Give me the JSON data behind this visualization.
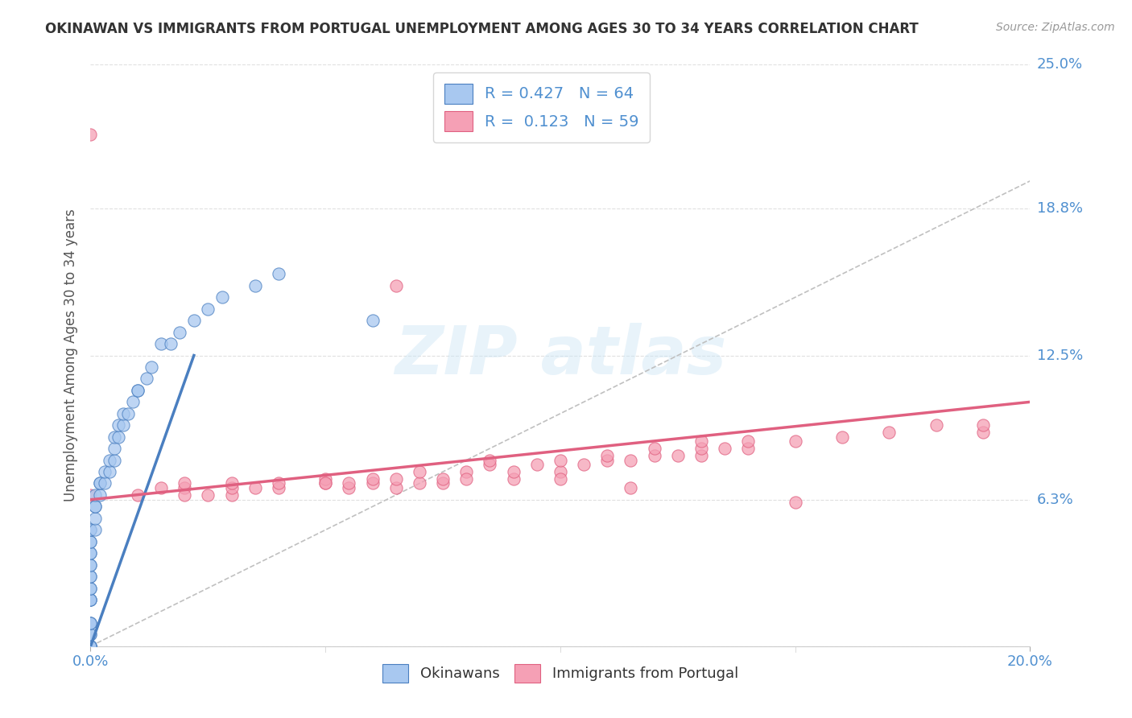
{
  "title": "OKINAWAN VS IMMIGRANTS FROM PORTUGAL UNEMPLOYMENT AMONG AGES 30 TO 34 YEARS CORRELATION CHART",
  "source": "Source: ZipAtlas.com",
  "ylabel": "Unemployment Among Ages 30 to 34 years",
  "xlim": [
    0.0,
    0.2
  ],
  "ylim": [
    0.0,
    0.25
  ],
  "yticks": [
    0.0,
    0.063,
    0.125,
    0.188,
    0.25
  ],
  "ytick_labels": [
    "",
    "6.3%",
    "12.5%",
    "18.8%",
    "25.0%"
  ],
  "xtick_labels": [
    "0.0%",
    "20.0%"
  ],
  "legend_r1": "0.427",
  "legend_n1": "64",
  "legend_r2": "0.123",
  "legend_n2": "59",
  "color_blue": "#a8c8f0",
  "color_pink": "#f5a0b5",
  "color_line_blue": "#4a7fc0",
  "color_line_pink": "#e06080",
  "blue_scatter_x": [
    0.0,
    0.0,
    0.0,
    0.0,
    0.0,
    0.0,
    0.0,
    0.0,
    0.0,
    0.0,
    0.0,
    0.0,
    0.0,
    0.0,
    0.0,
    0.0,
    0.0,
    0.0,
    0.0,
    0.0,
    0.0,
    0.0,
    0.0,
    0.0,
    0.0,
    0.0,
    0.0,
    0.0,
    0.0,
    0.0,
    0.001,
    0.001,
    0.001,
    0.001,
    0.001,
    0.002,
    0.002,
    0.002,
    0.003,
    0.003,
    0.004,
    0.004,
    0.005,
    0.005,
    0.005,
    0.006,
    0.006,
    0.007,
    0.007,
    0.008,
    0.009,
    0.01,
    0.01,
    0.012,
    0.013,
    0.015,
    0.017,
    0.019,
    0.022,
    0.025,
    0.028,
    0.035,
    0.04,
    0.06
  ],
  "blue_scatter_y": [
    0.0,
    0.0,
    0.0,
    0.0,
    0.0,
    0.0,
    0.0,
    0.0,
    0.0,
    0.0,
    0.005,
    0.005,
    0.01,
    0.01,
    0.01,
    0.02,
    0.02,
    0.02,
    0.025,
    0.025,
    0.03,
    0.03,
    0.035,
    0.035,
    0.04,
    0.04,
    0.045,
    0.045,
    0.05,
    0.05,
    0.05,
    0.055,
    0.06,
    0.06,
    0.065,
    0.065,
    0.07,
    0.07,
    0.07,
    0.075,
    0.075,
    0.08,
    0.08,
    0.085,
    0.09,
    0.09,
    0.095,
    0.095,
    0.1,
    0.1,
    0.105,
    0.11,
    0.11,
    0.115,
    0.12,
    0.13,
    0.13,
    0.135,
    0.14,
    0.145,
    0.15,
    0.155,
    0.16,
    0.14
  ],
  "pink_scatter_x": [
    0.0,
    0.0,
    0.01,
    0.015,
    0.02,
    0.02,
    0.025,
    0.03,
    0.03,
    0.03,
    0.04,
    0.04,
    0.05,
    0.05,
    0.055,
    0.055,
    0.06,
    0.06,
    0.065,
    0.065,
    0.07,
    0.07,
    0.075,
    0.075,
    0.08,
    0.08,
    0.085,
    0.09,
    0.09,
    0.095,
    0.1,
    0.1,
    0.105,
    0.11,
    0.11,
    0.115,
    0.12,
    0.12,
    0.125,
    0.13,
    0.13,
    0.135,
    0.14,
    0.14,
    0.15,
    0.16,
    0.17,
    0.18,
    0.19,
    0.19,
    0.02,
    0.035,
    0.05,
    0.065,
    0.085,
    0.1,
    0.115,
    0.13,
    0.15
  ],
  "pink_scatter_y": [
    0.065,
    0.22,
    0.065,
    0.068,
    0.068,
    0.07,
    0.065,
    0.065,
    0.068,
    0.07,
    0.068,
    0.07,
    0.07,
    0.072,
    0.068,
    0.07,
    0.07,
    0.072,
    0.068,
    0.072,
    0.07,
    0.075,
    0.07,
    0.072,
    0.075,
    0.072,
    0.078,
    0.072,
    0.075,
    0.078,
    0.075,
    0.08,
    0.078,
    0.08,
    0.082,
    0.08,
    0.082,
    0.085,
    0.082,
    0.082,
    0.085,
    0.085,
    0.085,
    0.088,
    0.088,
    0.09,
    0.092,
    0.095,
    0.092,
    0.095,
    0.065,
    0.068,
    0.07,
    0.155,
    0.08,
    0.072,
    0.068,
    0.088,
    0.062
  ],
  "blue_line_x": [
    0.0,
    0.022
  ],
  "blue_line_y": [
    0.0,
    0.125
  ],
  "pink_line_x": [
    0.0,
    0.2
  ],
  "pink_line_y": [
    0.063,
    0.105
  ],
  "diag_line_x": [
    0.0,
    0.2
  ],
  "diag_line_y": [
    0.0,
    0.2
  ],
  "background_color": "#ffffff",
  "grid_color": "#e0e0e0",
  "title_color": "#333333",
  "axis_label_color": "#555555",
  "right_tick_color": "#5090d0"
}
